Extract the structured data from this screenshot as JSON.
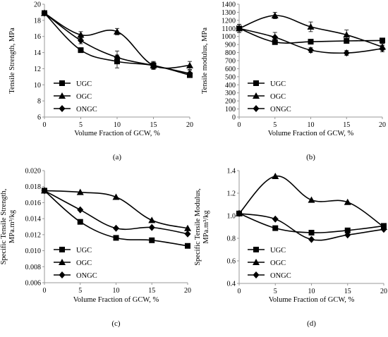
{
  "chart_data": [
    {
      "id": "a",
      "type": "line",
      "panel_label": "(a)",
      "title": "",
      "xlabel": "Volume Fraction of GCW, %",
      "ylabel_lines": [
        "Tensile Strength, MPa"
      ],
      "xlim": [
        0,
        20
      ],
      "ylim": [
        6,
        20
      ],
      "xticks": [
        0,
        5,
        10,
        15,
        20
      ],
      "xtick_labels": [
        "0",
        "5",
        "10",
        "15",
        "20"
      ],
      "yticks": [
        6,
        8,
        10,
        12,
        14,
        16,
        18,
        20
      ],
      "ytick_labels": [
        "6",
        "8",
        "10",
        "12",
        "14",
        "16",
        "18",
        "20"
      ],
      "grid": false,
      "legend_position": "bottom-left",
      "x": [
        0,
        5,
        10,
        15,
        20
      ],
      "series": [
        {
          "name": "UGC",
          "marker": "square",
          "values": [
            18.9,
            14.3,
            12.9,
            12.4,
            11.2
          ],
          "errors": [
            0,
            0.3,
            0.8,
            0.5,
            0.3
          ]
        },
        {
          "name": "OGC",
          "marker": "triangle",
          "values": [
            18.9,
            16.2,
            16.6,
            12.4,
            12.4
          ],
          "errors": [
            0,
            0.4,
            0.4,
            0.4,
            0.5
          ]
        },
        {
          "name": "ONGC",
          "marker": "diamond",
          "values": [
            18.9,
            15.5,
            13.4,
            12.4,
            11.4
          ],
          "errors": [
            0,
            0.4,
            0.8,
            0.4,
            0.4
          ]
        }
      ]
    },
    {
      "id": "b",
      "type": "line",
      "panel_label": "(b)",
      "title": "",
      "xlabel": "Volume Fraction of GCW, %",
      "ylabel_lines": [
        "Tensile modulus, MPa"
      ],
      "xlim": [
        0,
        20
      ],
      "ylim": [
        0,
        1400
      ],
      "xticks": [
        0,
        5,
        10,
        15,
        20
      ],
      "xtick_labels": [
        "0",
        "5",
        "10",
        "15",
        "20"
      ],
      "yticks": [
        0,
        100,
        200,
        300,
        400,
        500,
        600,
        700,
        800,
        900,
        1000,
        1100,
        1200,
        1300,
        1400
      ],
      "ytick_labels": [
        "0",
        "100",
        "200",
        "300",
        "400",
        "500",
        "600",
        "700",
        "800",
        "900",
        "1000",
        "1100",
        "1200",
        "1300",
        "1400"
      ],
      "grid": false,
      "legend_position": "bottom-left",
      "x": [
        0,
        5,
        10,
        15,
        20
      ],
      "series": [
        {
          "name": "UGC",
          "marker": "square",
          "values": [
            1100,
            930,
            935,
            945,
            950
          ],
          "errors": [
            50,
            30,
            20,
            30,
            30
          ]
        },
        {
          "name": "OGC",
          "marker": "triangle",
          "values": [
            1100,
            1260,
            1120,
            1020,
            870
          ],
          "errors": [
            50,
            40,
            60,
            60,
            40
          ]
        },
        {
          "name": "ONGC",
          "marker": "diamond",
          "values": [
            1100,
            990,
            830,
            795,
            850
          ],
          "errors": [
            50,
            60,
            30,
            30,
            40
          ]
        }
      ]
    },
    {
      "id": "c",
      "type": "line",
      "panel_label": "(c)",
      "title": "",
      "xlabel": "Volume Fraction of GCW, %",
      "ylabel_lines": [
        "Specific Tensile Strength,",
        "MPa.m³/kg"
      ],
      "xlim": [
        0,
        20
      ],
      "ylim": [
        0.006,
        0.02
      ],
      "xticks": [
        0,
        5,
        10,
        15,
        20
      ],
      "xtick_labels": [
        "0",
        "5",
        "10",
        "15",
        "20"
      ],
      "yticks": [
        0.006,
        0.008,
        0.01,
        0.012,
        0.014,
        0.016,
        0.018,
        0.02
      ],
      "ytick_labels": [
        "0.006",
        "0.008",
        "0.010",
        "0.012",
        "0.014",
        "0.016",
        "0.018",
        "0.020"
      ],
      "grid": false,
      "legend_position": "bottom-left",
      "x": [
        0,
        5,
        10,
        15,
        20
      ],
      "series": [
        {
          "name": "UGC",
          "marker": "square",
          "values": [
            0.0175,
            0.0136,
            0.0116,
            0.0113,
            0.0106
          ],
          "errors": [
            0,
            0,
            0,
            0,
            0
          ]
        },
        {
          "name": "OGC",
          "marker": "triangle",
          "values": [
            0.0175,
            0.0173,
            0.0167,
            0.0138,
            0.0128
          ],
          "errors": [
            0,
            0,
            0,
            0,
            0
          ]
        },
        {
          "name": "ONGC",
          "marker": "diamond",
          "values": [
            0.0175,
            0.0151,
            0.0128,
            0.0129,
            0.0121
          ],
          "errors": [
            0,
            0,
            0,
            0,
            0
          ]
        }
      ]
    },
    {
      "id": "d",
      "type": "line",
      "panel_label": "(d)",
      "title": "",
      "xlabel": "Volume Fraction of GCW, %",
      "ylabel_lines": [
        "Specific Tensile Modulus,",
        "MPa.m³/kg"
      ],
      "xlim": [
        0,
        20
      ],
      "ylim": [
        0.4,
        1.4
      ],
      "xticks": [
        0,
        5,
        10,
        15,
        20
      ],
      "xtick_labels": [
        "0",
        "5",
        "10",
        "15",
        "20"
      ],
      "yticks": [
        0.4,
        0.6,
        0.8,
        1.0,
        1.2,
        1.4
      ],
      "ytick_labels": [
        "0.4",
        "0.6",
        "0.8",
        "1.0",
        "1.2",
        "1.4"
      ],
      "grid": false,
      "legend_position": "bottom-left",
      "x": [
        0,
        5,
        10,
        15,
        20
      ],
      "series": [
        {
          "name": "UGC",
          "marker": "square",
          "values": [
            1.02,
            0.89,
            0.85,
            0.87,
            0.91
          ],
          "errors": [
            0,
            0,
            0,
            0,
            0
          ]
        },
        {
          "name": "OGC",
          "marker": "triangle",
          "values": [
            1.02,
            1.35,
            1.14,
            1.12,
            0.9
          ],
          "errors": [
            0,
            0,
            0,
            0,
            0
          ]
        },
        {
          "name": "ONGC",
          "marker": "diamond",
          "values": [
            1.02,
            0.97,
            0.79,
            0.83,
            0.88
          ],
          "errors": [
            0,
            0,
            0,
            0,
            0
          ]
        }
      ]
    }
  ]
}
